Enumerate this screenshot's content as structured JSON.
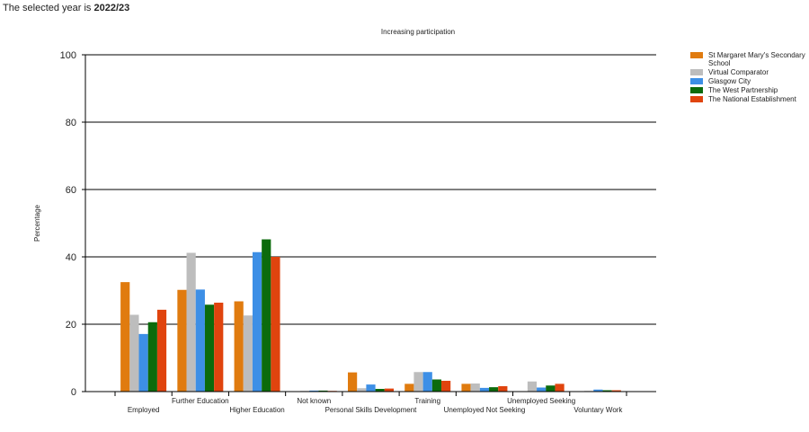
{
  "header": {
    "prefix": "The selected year is ",
    "year": "2022/23"
  },
  "chart_data": {
    "type": "bar",
    "title": "Increasing participation",
    "ylabel": "Percentage",
    "xlabel": "",
    "ylim": [
      0,
      100
    ],
    "yticks": [
      0,
      20,
      40,
      60,
      80,
      100
    ],
    "grid": true,
    "legend_position": "top-right",
    "categories": [
      "Employed",
      "Further Education",
      "Higher Education",
      "Not known",
      "Personal Skills Development",
      "Training",
      "Unemployed Not Seeking",
      "Unemployed Seeking",
      "Voluntary Work"
    ],
    "series": [
      {
        "name": "St Margaret Mary's Secondary School",
        "color": "#e07b0f",
        "values": [
          32.5,
          30.2,
          26.8,
          0.0,
          5.7,
          2.3,
          2.3,
          0.0,
          0.0
        ]
      },
      {
        "name": "Virtual Comparator",
        "color": "#bdbdbd",
        "values": [
          22.8,
          41.2,
          22.6,
          0.2,
          1.0,
          5.8,
          2.4,
          3.0,
          0.2
        ]
      },
      {
        "name": "Glasgow City",
        "color": "#3d8fe6",
        "values": [
          17.1,
          30.3,
          41.4,
          0.3,
          2.1,
          5.8,
          1.1,
          1.2,
          0.6
        ]
      },
      {
        "name": "The West Partnership",
        "color": "#0c6b0c",
        "values": [
          20.6,
          25.8,
          45.2,
          0.3,
          0.8,
          3.6,
          1.3,
          1.8,
          0.4
        ]
      },
      {
        "name": "The National Establishment",
        "color": "#e0440e",
        "values": [
          24.3,
          26.4,
          40.0,
          0.2,
          0.9,
          3.2,
          1.6,
          2.3,
          0.4
        ]
      }
    ]
  }
}
